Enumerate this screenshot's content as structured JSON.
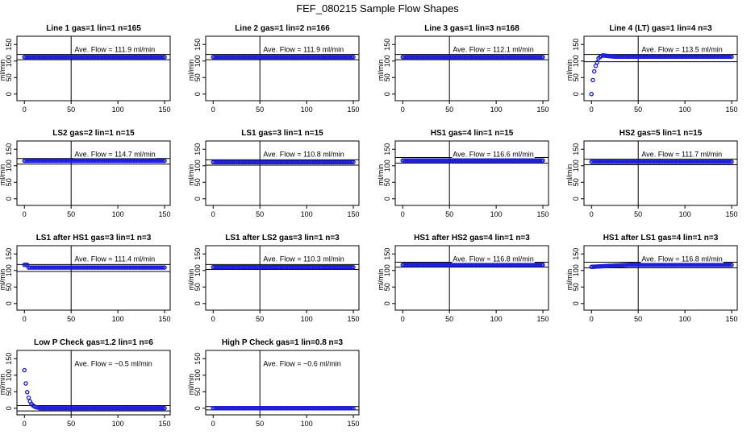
{
  "page_title": "FEF_080215  Sample Flow Shapes",
  "chart_data": [
    {
      "type": "scatter",
      "title": "Line 1 gas=1 lin=1 n=165",
      "ylabel": "ml/min",
      "xlim": [
        0,
        150
      ],
      "ylim": [
        0,
        150
      ],
      "xticks": [
        0,
        50,
        100,
        150
      ],
      "yticks": [
        0,
        50,
        100,
        150
      ],
      "annotation": "Ave. Flow =  111.9  ml/min",
      "hline_values": [
        104,
        120
      ],
      "vline_value": 50,
      "shape": "flat",
      "level": 112
    },
    {
      "type": "scatter",
      "title": "Line 2 gas=1 lin=2 n=166",
      "ylabel": "ml/min",
      "xlim": [
        0,
        150
      ],
      "ylim": [
        0,
        150
      ],
      "xticks": [
        0,
        50,
        100,
        150
      ],
      "yticks": [
        0,
        50,
        100,
        150
      ],
      "annotation": "Ave. Flow =  111.9  ml/min",
      "hline_values": [
        104,
        120
      ],
      "vline_value": 50,
      "shape": "flat",
      "level": 112
    },
    {
      "type": "scatter",
      "title": "Line 3 gas=1 lin=3 n=168",
      "ylabel": "ml/min",
      "xlim": [
        0,
        150
      ],
      "ylim": [
        0,
        150
      ],
      "xticks": [
        0,
        50,
        100,
        150
      ],
      "yticks": [
        0,
        50,
        100,
        150
      ],
      "annotation": "Ave. Flow =  112.1  ml/min",
      "hline_values": [
        104,
        120
      ],
      "vline_value": 50,
      "shape": "flat",
      "level": 112
    },
    {
      "type": "scatter",
      "title": "Line 4 (LT) gas=1 lin=4 n=3",
      "ylabel": "ml/min",
      "xlim": [
        0,
        150
      ],
      "ylim": [
        0,
        150
      ],
      "xticks": [
        0,
        50,
        100,
        150
      ],
      "yticks": [
        0,
        50,
        100,
        150
      ],
      "annotation": "Ave. Flow =  113.5  ml/min",
      "hline_values": [
        98,
        120
      ],
      "vline_value": 50,
      "shape": "rise",
      "level": 113
    },
    {
      "type": "scatter",
      "title": "LS2 gas=2 lin=1 n=15",
      "ylabel": "ml/min",
      "xlim": [
        0,
        150
      ],
      "ylim": [
        0,
        150
      ],
      "xticks": [
        0,
        50,
        100,
        150
      ],
      "yticks": [
        0,
        50,
        100,
        150
      ],
      "annotation": "Ave. Flow =  114.7  ml/min",
      "hline_values": [
        105,
        122
      ],
      "vline_value": 50,
      "shape": "flat",
      "level": 115
    },
    {
      "type": "scatter",
      "title": "LS1 gas=3 lin=1 n=15",
      "ylabel": "ml/min",
      "xlim": [
        0,
        150
      ],
      "ylim": [
        0,
        150
      ],
      "xticks": [
        0,
        50,
        100,
        150
      ],
      "yticks": [
        0,
        50,
        100,
        150
      ],
      "annotation": "Ave. Flow =  110.8  ml/min",
      "hline_values": [
        102,
        118
      ],
      "vline_value": 50,
      "shape": "flat",
      "level": 111
    },
    {
      "type": "scatter",
      "title": "HS1 gas=4 lin=1 n=15",
      "ylabel": "ml/min",
      "xlim": [
        0,
        150
      ],
      "ylim": [
        0,
        150
      ],
      "xticks": [
        0,
        50,
        100,
        150
      ],
      "yticks": [
        0,
        50,
        100,
        150
      ],
      "annotation": "Ave. Flow =  116.6  ml/min",
      "hline_values": [
        108,
        125
      ],
      "vline_value": 50,
      "shape": "flat",
      "level": 116
    },
    {
      "type": "scatter",
      "title": "HS2 gas=5 lin=1 n=15",
      "ylabel": "ml/min",
      "xlim": [
        0,
        150
      ],
      "ylim": [
        0,
        150
      ],
      "xticks": [
        0,
        50,
        100,
        150
      ],
      "yticks": [
        0,
        50,
        100,
        150
      ],
      "annotation": "Ave. Flow =  111.7  ml/min",
      "hline_values": [
        103,
        120
      ],
      "vline_value": 50,
      "shape": "flat",
      "level": 112
    },
    {
      "type": "scatter",
      "title": "LS1 after HS1 gas=3 lin=1 n=3",
      "ylabel": "ml/min",
      "xlim": [
        0,
        150
      ],
      "ylim": [
        0,
        150
      ],
      "xticks": [
        0,
        50,
        100,
        150
      ],
      "yticks": [
        0,
        50,
        100,
        150
      ],
      "annotation": "Ave. Flow =  111.4  ml/min",
      "hline_values": [
        97,
        118
      ],
      "vline_value": 50,
      "shape": "dip",
      "level": 111
    },
    {
      "type": "scatter",
      "title": "LS1 after LS2 gas=3 lin=1 n=3",
      "ylabel": "ml/min",
      "xlim": [
        0,
        150
      ],
      "ylim": [
        0,
        150
      ],
      "xticks": [
        0,
        50,
        100,
        150
      ],
      "yticks": [
        0,
        50,
        100,
        150
      ],
      "annotation": "Ave. Flow =  110.3  ml/min",
      "hline_values": [
        103,
        118
      ],
      "vline_value": 50,
      "shape": "flat",
      "level": 110
    },
    {
      "type": "scatter",
      "title": "HS1 after HS2 gas=4 lin=1 n=3",
      "ylabel": "ml/min",
      "xlim": [
        0,
        150
      ],
      "ylim": [
        0,
        150
      ],
      "xticks": [
        0,
        50,
        100,
        150
      ],
      "yticks": [
        0,
        50,
        100,
        150
      ],
      "annotation": "Ave. Flow =  116.8  ml/min",
      "hline_values": [
        110,
        125
      ],
      "vline_value": 50,
      "shape": "flat",
      "level": 117
    },
    {
      "type": "scatter",
      "title": "HS1 after LS1 gas=4 lin=1 n=3",
      "ylabel": "ml/min",
      "xlim": [
        0,
        150
      ],
      "ylim": [
        0,
        150
      ],
      "xticks": [
        0,
        50,
        100,
        150
      ],
      "yticks": [
        0,
        50,
        100,
        150
      ],
      "annotation": "Ave. Flow =  116.8  ml/min",
      "hline_values": [
        108,
        125
      ],
      "vline_value": 50,
      "shape": "slowrise",
      "level": 117
    },
    {
      "type": "scatter",
      "title": "Low P Check gas=1.2 lin=1 n=6",
      "ylabel": "ml/min",
      "xlim": [
        0,
        150
      ],
      "ylim": [
        0,
        150
      ],
      "xticks": [
        0,
        50,
        100,
        150
      ],
      "yticks": [
        0,
        50,
        100,
        150
      ],
      "annotation": "Ave. Flow =  −0.5  ml/min",
      "hline_values": [
        -8,
        8
      ],
      "vline_value": 50,
      "shape": "decay",
      "level": 0
    },
    {
      "type": "scatter",
      "title": "High P Check gas=1 lin=0.8 n=3",
      "ylabel": "ml/min",
      "xlim": [
        0,
        150
      ],
      "ylim": [
        0,
        150
      ],
      "xticks": [
        0,
        50,
        100,
        150
      ],
      "yticks": [
        0,
        50,
        100,
        150
      ],
      "annotation": "Ave. Flow =  −0.6  ml/min",
      "hline_values": [
        -5,
        5
      ],
      "vline_value": 50,
      "shape": "flat",
      "level": 0
    }
  ],
  "colors": {
    "points": "#1a1ad8",
    "axis": "#000000",
    "background": "#ffffff"
  }
}
